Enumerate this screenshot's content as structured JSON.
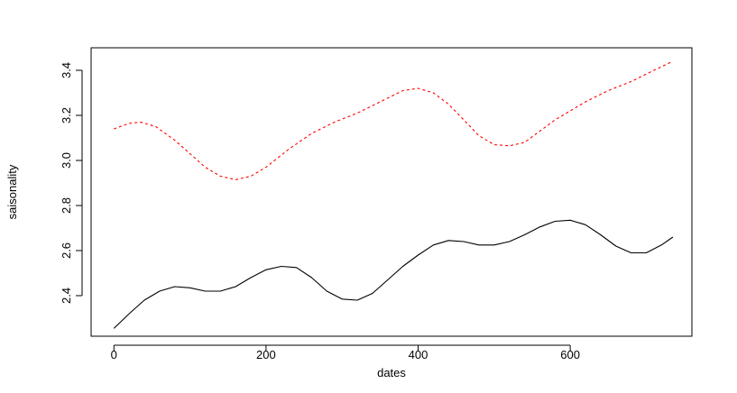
{
  "chart_data": {
    "type": "line",
    "title": "",
    "xlabel": "dates",
    "ylabel": "saisonality",
    "xlim": [
      -30,
      760
    ],
    "ylim": [
      2.22,
      3.5
    ],
    "x_ticks": [
      0,
      200,
      400,
      600
    ],
    "x_tick_labels": [
      "0",
      "200",
      "400",
      "600"
    ],
    "y_ticks": [
      2.4,
      2.6,
      2.8,
      3.0,
      3.2,
      3.4
    ],
    "y_tick_labels": [
      "2.4",
      "2.6",
      "2.8",
      "3.0",
      "3.2",
      "3.4"
    ],
    "grid": false,
    "legend": "none",
    "series": [
      {
        "color": "#ff0000",
        "line_style": "dashed",
        "x": [
          0,
          20,
          35,
          55,
          80,
          100,
          120,
          140,
          160,
          180,
          200,
          230,
          260,
          290,
          320,
          350,
          380,
          400,
          420,
          440,
          460,
          480,
          500,
          520,
          540,
          560,
          580,
          600,
          620,
          650,
          680,
          710,
          735
        ],
        "y": [
          3.14,
          3.165,
          3.17,
          3.15,
          3.09,
          3.03,
          2.97,
          2.93,
          2.915,
          2.93,
          2.97,
          3.05,
          3.12,
          3.17,
          3.21,
          3.26,
          3.31,
          3.32,
          3.3,
          3.25,
          3.18,
          3.11,
          3.07,
          3.065,
          3.08,
          3.13,
          3.18,
          3.22,
          3.26,
          3.31,
          3.35,
          3.4,
          3.44
        ]
      },
      {
        "color": "#000000",
        "line_style": "solid",
        "x": [
          0,
          20,
          40,
          60,
          80,
          100,
          120,
          140,
          160,
          180,
          200,
          220,
          240,
          260,
          280,
          300,
          320,
          340,
          360,
          380,
          400,
          420,
          440,
          460,
          480,
          500,
          520,
          540,
          560,
          580,
          600,
          620,
          640,
          660,
          680,
          700,
          720,
          735
        ],
        "y": [
          2.255,
          2.32,
          2.38,
          2.42,
          2.44,
          2.435,
          2.42,
          2.42,
          2.44,
          2.48,
          2.515,
          2.53,
          2.525,
          2.48,
          2.42,
          2.385,
          2.38,
          2.41,
          2.47,
          2.53,
          2.58,
          2.625,
          2.645,
          2.64,
          2.625,
          2.625,
          2.64,
          2.67,
          2.705,
          2.73,
          2.735,
          2.715,
          2.67,
          2.62,
          2.59,
          2.59,
          2.625,
          2.66
        ]
      }
    ]
  }
}
